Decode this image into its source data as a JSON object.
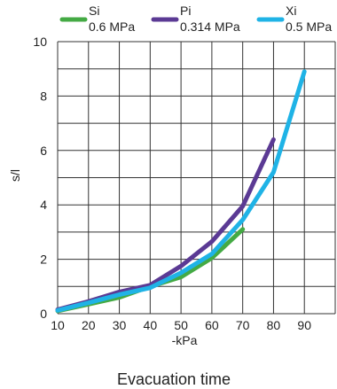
{
  "chart_data": {
    "type": "line",
    "title": "",
    "caption": "Evacuation time",
    "xlabel": "-kPa",
    "ylabel": "s/l",
    "xlim": [
      10,
      100
    ],
    "ylim": [
      0,
      10
    ],
    "x_ticks": [
      10,
      20,
      30,
      40,
      50,
      60,
      70,
      80,
      90
    ],
    "y_ticks": [
      0,
      2,
      4,
      6,
      8,
      10
    ],
    "grid": true,
    "legend_position": "top",
    "series": [
      {
        "name": "Si",
        "sub": "0.6 MPa",
        "color": "#44aa44",
        "x": [
          10,
          20,
          30,
          40,
          50,
          60,
          70
        ],
        "y": [
          0.1,
          0.35,
          0.6,
          1.0,
          1.35,
          2.05,
          3.1
        ]
      },
      {
        "name": "Pi",
        "sub": "0.314 MPa",
        "color": "#5b3a94",
        "x": [
          10,
          20,
          30,
          40,
          50,
          60,
          70,
          80
        ],
        "y": [
          0.15,
          0.45,
          0.8,
          1.05,
          1.75,
          2.65,
          3.95,
          6.4
        ]
      },
      {
        "name": "Xi",
        "sub": "0.5 MPa",
        "color": "#1fb3e6",
        "x": [
          10,
          20,
          30,
          40,
          50,
          60,
          70,
          80,
          90
        ],
        "y": [
          0.12,
          0.4,
          0.7,
          0.95,
          1.5,
          2.2,
          3.45,
          5.2,
          8.9
        ]
      }
    ]
  }
}
